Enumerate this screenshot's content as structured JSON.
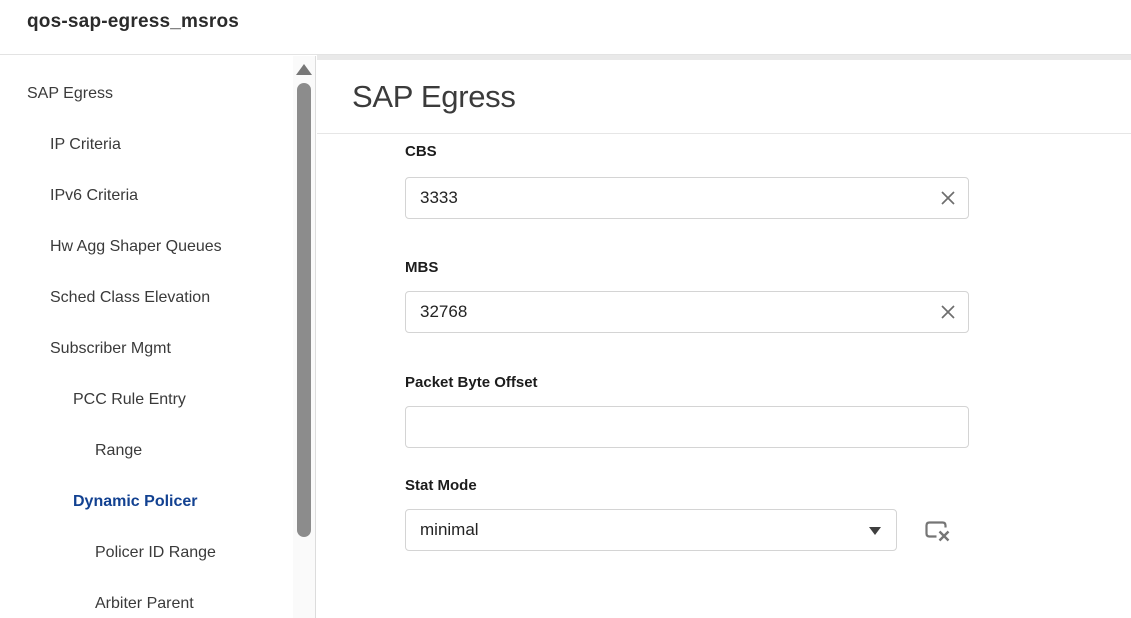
{
  "window": {
    "title": "qos-sap-egress_msros"
  },
  "colors": {
    "accent_blue": "#124191",
    "scroll_thumb": "#8c8c8c",
    "input_border": "#d4d4d4",
    "divider": "#e6e6e6",
    "icon_gray": "#757575"
  },
  "sidebar": {
    "items": [
      {
        "label": "SAP Egress",
        "level": 0,
        "selected": false
      },
      {
        "label": "IP Criteria",
        "level": 1,
        "selected": false
      },
      {
        "label": "IPv6 Criteria",
        "level": 1,
        "selected": false
      },
      {
        "label": "Hw Agg Shaper Queues",
        "level": 1,
        "selected": false
      },
      {
        "label": "Sched Class Elevation",
        "level": 1,
        "selected": false
      },
      {
        "label": "Subscriber Mgmt",
        "level": 1,
        "selected": false
      },
      {
        "label": "PCC Rule Entry",
        "level": 2,
        "selected": false
      },
      {
        "label": "Range",
        "level": 3,
        "selected": false
      },
      {
        "label": "Dynamic Policer",
        "level": 2,
        "selected": true
      },
      {
        "label": "Policer ID Range",
        "level": 3,
        "selected": false
      },
      {
        "label": "Arbiter Parent",
        "level": 3,
        "selected": false
      }
    ],
    "scrollbar": {
      "up_arrow_icon": "scroll-up-arrow-icon"
    }
  },
  "main": {
    "heading": "SAP Egress",
    "fields": [
      {
        "label": "CBS",
        "value": "3333",
        "type": "text",
        "clearable": true,
        "clear_icon": "x-icon"
      },
      {
        "label": "MBS",
        "value": "32768",
        "type": "text",
        "clearable": true,
        "clear_icon": "x-icon"
      },
      {
        "label": "Packet Byte Offset",
        "value": "",
        "type": "text",
        "clearable": false
      },
      {
        "label": "Stat Mode",
        "value": "minimal",
        "type": "select",
        "arrow_icon": "chevron-down-icon",
        "deselect_icon": "deselect-icon"
      }
    ]
  }
}
